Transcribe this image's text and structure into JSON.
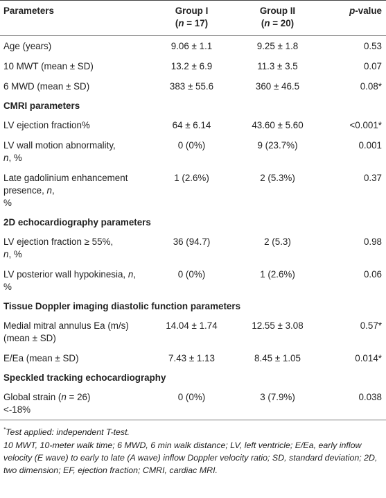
{
  "headers": {
    "parameters": "Parameters",
    "group1_line1": "Group I",
    "group1_n": "n",
    "group1_val": "= 17)",
    "group2_line1": "Group II",
    "group2_n": "n",
    "group2_val": "= 20)",
    "p_label": "p",
    "p_suffix": "-value"
  },
  "rows": {
    "age": {
      "label": "Age (years)",
      "g1": "9.06 ± 1.1",
      "g2": "9.25 ± 1.8",
      "p": "0.53"
    },
    "mwt10": {
      "label": "10 MWT (mean ± SD)",
      "g1": "13.2 ± 6.9",
      "g2": "11.3 ± 3.5",
      "p": "0.07"
    },
    "mwd6": {
      "label": "6 MWD (mean ± SD)",
      "g1": "383 ± 55.6",
      "g2": "360 ± 46.5",
      "p": "0.08*"
    },
    "section_cmri": "CMRI parameters",
    "lvef": {
      "label": "LV ejection fraction%",
      "g1": "64 ± 6.14",
      "g2": "43.60 ± 5.60",
      "p": "<0.001*"
    },
    "lvwma": {
      "label_a": "LV wall motion abnormality,",
      "label_n": "n",
      "label_b": ", %",
      "g1": "0 (0%)",
      "g2": "9 (23.7%)",
      "p": "0.001"
    },
    "lge": {
      "label_a": "Late gadolinium enhancement presence,",
      "label_n": "n",
      "label_b": ",",
      "label_c": "%",
      "g1": "1 (2.6%)",
      "g2": "2 (5.3%)",
      "p": "0.37"
    },
    "section_echo": "2D echocardiography parameters",
    "lvef55": {
      "label_a": "LV ejection fraction ≥ 55%,",
      "label_n": "n",
      "label_b": ", %",
      "g1": "36 (94.7)",
      "g2": "2 (5.3)",
      "p": "0.98"
    },
    "lvpwh": {
      "label_a": "LV posterior wall hypokinesia,",
      "label_n": "n",
      "label_b": ", %",
      "g1": "0 (0%)",
      "g2": "1 (2.6%)",
      "p": "0.06"
    },
    "section_tdi": "Tissue Doppler imaging diastolic function parameters",
    "mmaea": {
      "label": "Medial mitral annulus Ea (m/s) (mean ± SD)",
      "g1": "14.04 ± 1.74",
      "g2": "12.55 ± 3.08",
      "p": "0.57*"
    },
    "eea": {
      "label": "E/Ea (mean ± SD)",
      "g1": "7.43 ± 1.13",
      "g2": "8.45 ± 1.05",
      "p": "0.014*"
    },
    "section_ste": "Speckled tracking echocardiography",
    "gs": {
      "label_a": "Global strain (",
      "label_n": "n",
      "label_b": "= 26)",
      "label_c": "<-18%",
      "g1": "0 (0%)",
      "g2": "3 (7.9%)",
      "p": "0.038"
    }
  },
  "notes": {
    "note1_mark": "*",
    "note1": "Test applied: independent T-test.",
    "note2": "10 MWT, 10-meter walk time; 6 MWD, 6 min walk distance; LV, left ventricle; E/Ea, early inflow velocity (E wave) to early to late (A wave) inflow Doppler velocity ratio; SD, standard deviation; 2D, two dimension; EF, ejection fraction; CMRI, cardiac MRI."
  }
}
